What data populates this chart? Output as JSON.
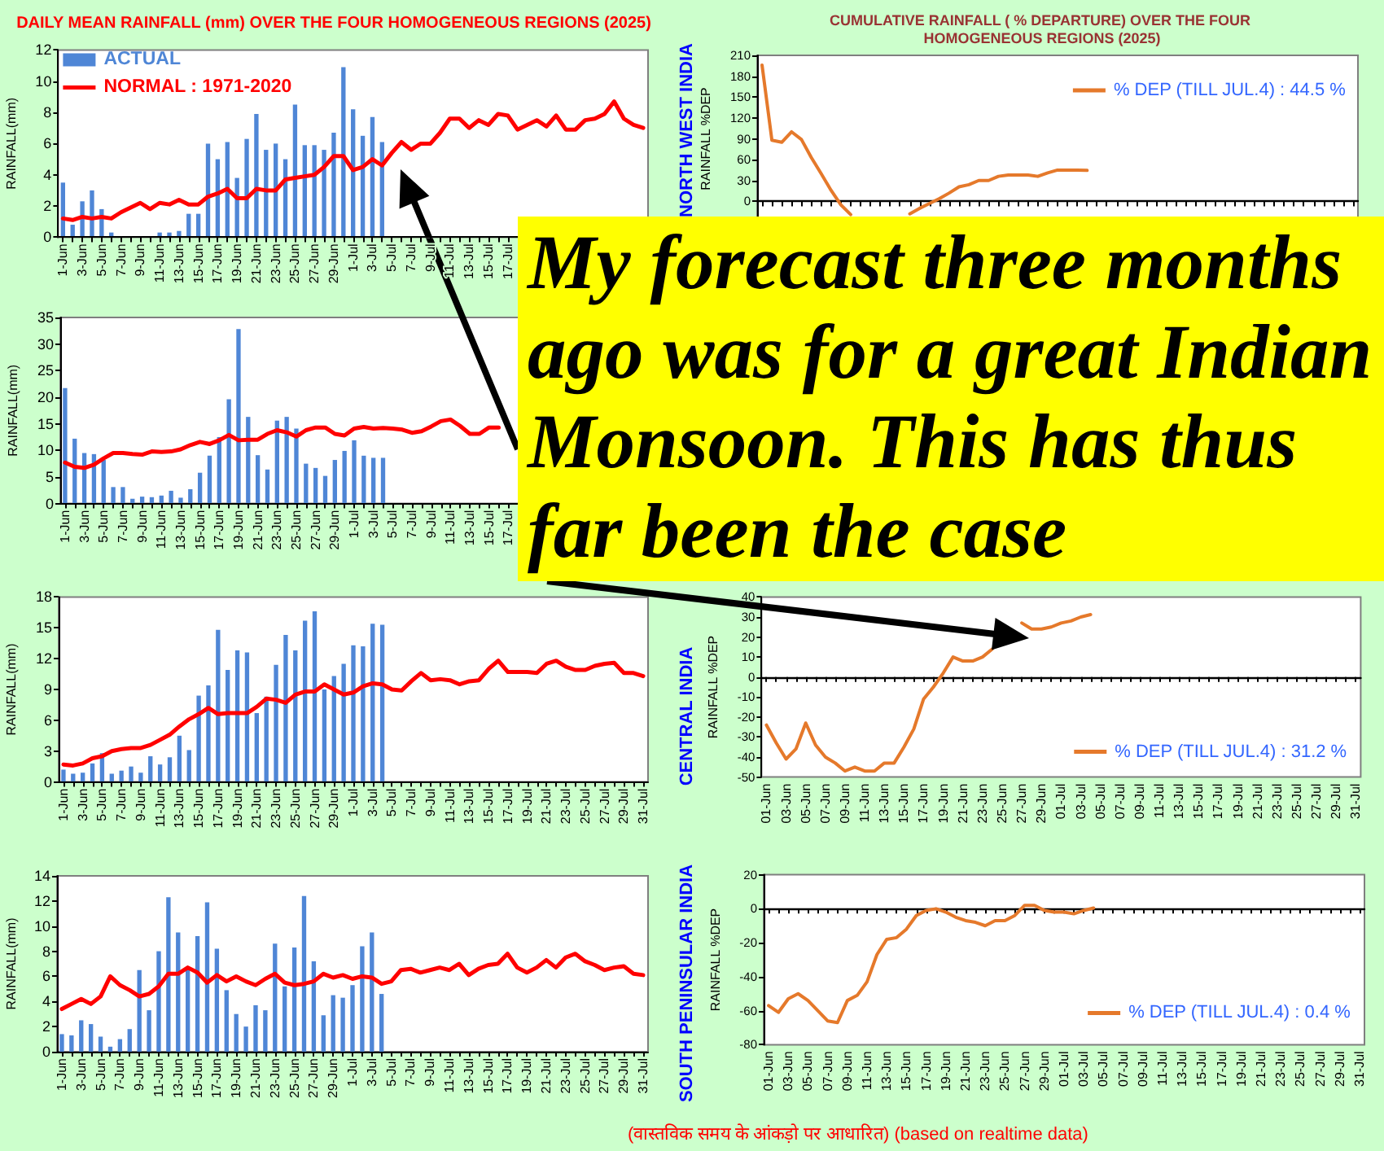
{
  "chart_data": [
    {
      "type": "bar",
      "title": "DAILY MEAN RAINFALL (mm) OVER THE FOUR HOMOGENEOUS REGIONS (2025)",
      "ylabel": "RAINFALL(mm)",
      "categories": [
        "1-Jun",
        null,
        "3-Jun",
        null,
        "5-Jun",
        null,
        "7-Jun",
        null,
        "9-Jun",
        null,
        "11-Jun",
        null,
        "13-Jun",
        null,
        "15-Jun",
        null,
        "17-Jun",
        null,
        "19-Jun",
        null,
        "21-Jun",
        null,
        "23-Jun",
        null,
        "25-Jun",
        null,
        "27-Jun",
        null,
        "29-Jun",
        null,
        "1-Jul",
        null,
        "3-Jul",
        null,
        "5-Jul",
        null,
        "7-Jul",
        null,
        "9-Jul",
        null,
        "11-Jul",
        null,
        "13-Jul",
        null,
        "15-Jul",
        null,
        "17-Jul",
        null,
        null,
        null,
        null,
        null,
        null,
        null,
        null,
        null,
        null,
        null,
        null,
        null,
        null
      ],
      "series": [
        {
          "name": "ACTUAL",
          "type": "bar",
          "color": "#4f86d6",
          "values": [
            3.5,
            0.8,
            2.3,
            3.0,
            1.8,
            0.3,
            0,
            0,
            0,
            0,
            0.3,
            0.3,
            0.4,
            1.5,
            1.5,
            6.0,
            5.0,
            6.1,
            3.8,
            6.3,
            7.9,
            5.6,
            6.0,
            5.0,
            8.5,
            5.9,
            5.9,
            5.6,
            6.7,
            10.9,
            8.2,
            6.5,
            7.7,
            6.1,
            null,
            null,
            null,
            null,
            null,
            null,
            null,
            null,
            null,
            null,
            null,
            null,
            null,
            null,
            null,
            null,
            null,
            null,
            null,
            null,
            null,
            null,
            null,
            null,
            null,
            null,
            null
          ]
        },
        {
          "name": "NORMAL : 1971-2020",
          "type": "line",
          "color": "#ff0000",
          "values": [
            1.2,
            1.1,
            1.3,
            1.2,
            1.3,
            1.2,
            1.6,
            1.9,
            2.2,
            1.8,
            2.2,
            2.1,
            2.4,
            2.1,
            2.1,
            2.6,
            2.8,
            3.1,
            2.5,
            2.5,
            3.1,
            3.0,
            3.0,
            3.7,
            3.8,
            3.9,
            4.0,
            4.5,
            5.2,
            5.2,
            4.3,
            4.5,
            5.0,
            4.6,
            5.4,
            6.1,
            5.6,
            6.0,
            6.0,
            6.7,
            7.6,
            7.6,
            7.0,
            7.5,
            7.2,
            7.9,
            7.8,
            6.9,
            7.2,
            7.5,
            7.1,
            7.8,
            6.9,
            6.9,
            7.5,
            7.6,
            7.9,
            8.7,
            7.6,
            7.2,
            7.0
          ]
        }
      ],
      "ylim": [
        0,
        12
      ],
      "yticks": [
        0,
        2,
        4,
        6,
        8,
        10,
        12
      ],
      "legend": "top left"
    },
    {
      "type": "line",
      "title": "CUMULATIVE RAINFALL ( % DEPARTURE) OVER THE FOUR HOMOGENEOUS REGIONS (2025)",
      "subtitle": "NORTH WEST INDIA",
      "ylabel": "RAINFALL %DEP",
      "categories": [
        null,
        null,
        null,
        null,
        null,
        null,
        null,
        null,
        null,
        null,
        null,
        null,
        null,
        null,
        null,
        null,
        null,
        null,
        null,
        null,
        null,
        null,
        null,
        null,
        null,
        null,
        null,
        null,
        null,
        null,
        null,
        null,
        null,
        null,
        null,
        null,
        null,
        null,
        null,
        null,
        null,
        null,
        null,
        null,
        null,
        null,
        null,
        null,
        null,
        null,
        null,
        null,
        null,
        null,
        null,
        null,
        null,
        null,
        null,
        null,
        null
      ],
      "series": [
        {
          "name": "% DEP (TILL JUL.4) : 44.5 %",
          "color": "#e5792b",
          "values": [
            196,
            88,
            85,
            100,
            89,
            63,
            40,
            16,
            -5,
            -19,
            null,
            null,
            null,
            null,
            null,
            -18,
            -10,
            -3,
            4,
            12,
            21,
            24,
            30,
            30,
            36,
            38,
            38,
            38,
            36,
            41,
            45,
            45,
            45,
            44.5,
            null,
            null,
            null,
            null,
            null,
            null,
            null,
            null,
            null,
            null,
            null,
            null,
            null,
            null,
            null,
            null,
            null,
            null,
            null,
            null,
            null,
            null,
            null,
            null,
            null,
            null,
            null
          ]
        }
      ],
      "ylim": [
        -30,
        210
      ],
      "yticks": [
        0,
        30,
        60,
        90,
        120,
        150,
        180,
        210
      ],
      "tick_labels": "y",
      "legend": "top right"
    },
    {
      "type": "bar",
      "ylabel": "RAINFALL(mm)",
      "categories": [
        "1-Jun",
        null,
        "3-Jun",
        null,
        "5-Jun",
        null,
        "7-Jun",
        null,
        "9-Jun",
        null,
        "11-Jun",
        null,
        "13-Jun",
        null,
        "15-Jun",
        null,
        "17-Jun",
        null,
        "19-Jun",
        null,
        "21-Jun",
        null,
        "23-Jun",
        null,
        "25-Jun",
        null,
        "27-Jun",
        null,
        "29-Jun",
        null,
        "1-Jul",
        null,
        "3-Jul",
        null,
        "5-Jul",
        null,
        "7-Jul",
        null,
        "9-Jul",
        null,
        "11-Jul",
        null,
        "13-Jul",
        null,
        "15-Jul",
        null,
        "17-Jul",
        null,
        null,
        null,
        null,
        null,
        null,
        null,
        null,
        null,
        null,
        null,
        null,
        null,
        null
      ],
      "series": [
        {
          "type": "bar",
          "color": "#4f86d6",
          "values": [
            21.7,
            12.2,
            9.5,
            9.3,
            8.2,
            3.1,
            3.1,
            0.9,
            1.3,
            1.2,
            1.5,
            2.4,
            1.1,
            2.7,
            5.8,
            9.0,
            12.5,
            19.6,
            32.8,
            16.3,
            9.1,
            6.4,
            15.6,
            16.3,
            14.1,
            7.5,
            6.7,
            5.2,
            8.2,
            9.9,
            11.9,
            9.0,
            8.6,
            8.6,
            null,
            null,
            null,
            null,
            null,
            null,
            null,
            null,
            null,
            null,
            null,
            null,
            null,
            null,
            null,
            null,
            null,
            null,
            null,
            null,
            null,
            null,
            null,
            null,
            null,
            null,
            null
          ]
        },
        {
          "type": "line",
          "color": "#ff0000",
          "values": [
            7.7,
            6.9,
            6.7,
            7.3,
            8.5,
            9.5,
            9.5,
            9.3,
            9.2,
            9.8,
            9.7,
            9.8,
            10.2,
            11.0,
            11.6,
            11.2,
            11.9,
            12.9,
            11.9,
            12.0,
            12.0,
            13.1,
            13.8,
            13.4,
            12.6,
            13.8,
            14.3,
            14.3,
            13.1,
            12.8,
            14.1,
            14.4,
            14.1,
            14.2,
            14.1,
            13.9,
            13.3,
            13.6,
            14.5,
            15.5,
            15.8,
            14.6,
            13.1,
            13.1,
            14.3,
            14.3,
            null,
            null,
            null,
            null,
            null,
            null,
            null,
            null,
            null,
            null,
            null,
            null,
            null,
            null,
            null
          ]
        }
      ],
      "ylim": [
        0,
        35
      ],
      "yticks": [
        0,
        5,
        10,
        15,
        20,
        25,
        30,
        35
      ]
    },
    {
      "type": "other",
      "annotations": [
        "My forecast three months ago was for a great Indian Monsoon. This has thus far been the case"
      ]
    },
    {
      "type": "bar",
      "ylabel": "RAINFALL(mm)",
      "categories": [
        "1-Jun",
        null,
        "3-Jun",
        null,
        "5-Jun",
        null,
        "7-Jun",
        null,
        "9-Jun",
        null,
        "11-Jun",
        null,
        "13-Jun",
        null,
        "15-Jun",
        null,
        "17-Jun",
        null,
        "19-Jun",
        null,
        "21-Jun",
        null,
        "23-Jun",
        null,
        "25-Jun",
        null,
        "27-Jun",
        null,
        "29-Jun",
        null,
        "1-Jul",
        null,
        "3-Jul",
        null,
        "5-Jul",
        null,
        "7-Jul",
        null,
        "9-Jul",
        null,
        "11-Jul",
        null,
        "13-Jul",
        null,
        "15-Jul",
        null,
        "17-Jul",
        null,
        "19-Jul",
        null,
        "21-Jul",
        null,
        "23-Jul",
        null,
        "25-Jul",
        null,
        "27-Jul",
        null,
        "29-Jul",
        null,
        "31-Jul"
      ],
      "series": [
        {
          "type": "bar",
          "color": "#4f86d6",
          "values": [
            1.2,
            0.8,
            0.9,
            1.8,
            2.8,
            0.8,
            1.1,
            1.5,
            0.9,
            2.5,
            1.7,
            2.4,
            4.5,
            3.1,
            8.4,
            9.4,
            14.8,
            10.9,
            12.8,
            12.6,
            6.7,
            8.3,
            11.4,
            14.3,
            12.8,
            15.7,
            16.6,
            9.0,
            10.3,
            11.5,
            13.3,
            13.2,
            15.4,
            15.3,
            null,
            null,
            null,
            null,
            null,
            null,
            null,
            null,
            null,
            null,
            null,
            null,
            null,
            null,
            null,
            null,
            null,
            null,
            null,
            null,
            null,
            null,
            null,
            null,
            null,
            null,
            null
          ]
        },
        {
          "type": "line",
          "color": "#ff0000",
          "values": [
            1.7,
            1.6,
            1.8,
            2.3,
            2.5,
            3.0,
            3.2,
            3.3,
            3.3,
            3.6,
            4.1,
            4.6,
            5.4,
            6.1,
            6.6,
            7.2,
            6.6,
            6.7,
            6.7,
            6.7,
            7.3,
            8.1,
            8.0,
            7.7,
            8.5,
            8.8,
            8.8,
            9.5,
            9.0,
            8.5,
            8.7,
            9.3,
            9.6,
            9.5,
            9.0,
            8.9,
            9.8,
            10.6,
            9.9,
            10.0,
            9.9,
            9.5,
            9.8,
            9.9,
            11.0,
            11.8,
            10.7,
            10.7,
            10.7,
            10.6,
            11.5,
            11.8,
            11.2,
            10.9,
            10.9,
            11.3,
            11.5,
            11.6,
            10.6,
            10.6,
            10.3
          ]
        }
      ],
      "ylim": [
        0,
        18
      ],
      "yticks": [
        0,
        3,
        6,
        9,
        12,
        15,
        18
      ]
    },
    {
      "type": "line",
      "subtitle": "CENTRAL INDIA",
      "ylabel": "RAINFALL %DEP",
      "categories": [
        "01-Jun",
        null,
        "03-Jun",
        null,
        "05-Jun",
        null,
        "07-Jun",
        null,
        "09-Jun",
        null,
        "11-Jun",
        null,
        "13-Jun",
        null,
        "15-Jun",
        null,
        "17-Jun",
        null,
        "19-Jun",
        null,
        "21-Jun",
        null,
        "23-Jun",
        null,
        "25-Jun",
        null,
        "27-Jun",
        null,
        "29-Jun",
        null,
        "01-Jul",
        null,
        "03-Jul",
        null,
        "05-Jul",
        null,
        "07-Jul",
        null,
        "09-Jul",
        null,
        "11-Jul",
        null,
        "13-Jul",
        null,
        "15-Jul",
        null,
        "17-Jul",
        null,
        "19-Jul",
        null,
        "21-Jul",
        null,
        "23-Jul",
        null,
        "25-Jul",
        null,
        "27-Jul",
        null,
        "29-Jul",
        null,
        "31-Jul"
      ],
      "series": [
        {
          "name": "% DEP (TILL JUL.4) : 31.2 %",
          "color": "#e5792b",
          "values": [
            -24,
            -33,
            -41,
            -36,
            -23,
            -34,
            -40,
            -43,
            -47,
            -45,
            -47,
            -47,
            -43,
            -43,
            -35,
            -26,
            -11,
            -5,
            2,
            10,
            8,
            8,
            10,
            14,
            null,
            null,
            27,
            24,
            24,
            25,
            27,
            28,
            30,
            31.2,
            null,
            null,
            null,
            null,
            null,
            null,
            null,
            null,
            null,
            null,
            null,
            null,
            null,
            null,
            null,
            null,
            null,
            null,
            null,
            null,
            null,
            null,
            null,
            null,
            null,
            null,
            null
          ]
        }
      ],
      "ylim": [
        -50,
        40
      ],
      "yticks": [
        -50,
        -40,
        -30,
        -20,
        -10,
        0,
        10,
        20,
        30,
        40
      ],
      "legend": "bottom right"
    },
    {
      "type": "bar",
      "ylabel": "RAINFALL(mm)",
      "categories": [
        "1-Jun",
        null,
        "3-Jun",
        null,
        "5-Jun",
        null,
        "7-Jun",
        null,
        "9-Jun",
        null,
        "11-Jun",
        null,
        "13-Jun",
        null,
        "15-Jun",
        null,
        "17-Jun",
        null,
        "19-Jun",
        null,
        "21-Jun",
        null,
        "23-Jun",
        null,
        "25-Jun",
        null,
        "27-Jun",
        null,
        "29-Jun",
        null,
        "1-Jul",
        null,
        "3-Jul",
        null,
        "5-Jul",
        null,
        "7-Jul",
        null,
        "9-Jul",
        null,
        "11-Jul",
        null,
        "13-Jul",
        null,
        "15-Jul",
        null,
        "17-Jul",
        null,
        "19-Jul",
        null,
        "21-Jul",
        null,
        "23-Jul",
        null,
        "25-Jul",
        null,
        "27-Jul",
        null,
        "29-Jul",
        null,
        "31-Jul"
      ],
      "series": [
        {
          "type": "bar",
          "color": "#4f86d6",
          "values": [
            1.4,
            1.3,
            2.5,
            2.2,
            1.2,
            0.4,
            1.0,
            1.8,
            6.5,
            3.3,
            8.0,
            12.3,
            9.5,
            6.6,
            9.2,
            11.9,
            8.2,
            4.9,
            3.0,
            2.0,
            3.7,
            3.3,
            8.6,
            5.2,
            8.3,
            12.4,
            7.2,
            2.9,
            4.5,
            4.3,
            5.3,
            8.4,
            9.5,
            4.6,
            null,
            null,
            null,
            null,
            null,
            null,
            null,
            null,
            null,
            null,
            null,
            null,
            null,
            null,
            null,
            null,
            null,
            null,
            null,
            null,
            null,
            null,
            null,
            null,
            null,
            null,
            null
          ]
        },
        {
          "type": "line",
          "color": "#ff0000",
          "values": [
            3.4,
            3.8,
            4.2,
            3.8,
            4.4,
            6.0,
            5.3,
            4.9,
            4.4,
            4.6,
            5.2,
            6.2,
            6.2,
            6.7,
            6.3,
            5.5,
            6.1,
            5.6,
            6.0,
            5.6,
            5.3,
            5.8,
            6.2,
            5.5,
            5.3,
            5.4,
            5.6,
            6.2,
            5.9,
            6.1,
            5.8,
            6.0,
            5.9,
            5.4,
            5.6,
            6.5,
            6.6,
            6.3,
            6.5,
            6.7,
            6.5,
            7.0,
            6.1,
            6.6,
            6.9,
            7.0,
            7.8,
            6.7,
            6.3,
            6.7,
            7.3,
            6.7,
            7.5,
            7.8,
            7.2,
            6.9,
            6.5,
            6.7,
            6.8,
            6.2,
            6.1
          ]
        }
      ],
      "ylim": [
        0,
        14
      ],
      "yticks": [
        0,
        2,
        4,
        6,
        8,
        10,
        12,
        14
      ],
      "annotations": [
        "(वास्तविक समय के आंकड़ो पर आधारित) (based on realtime data)"
      ]
    },
    {
      "type": "line",
      "subtitle": "SOUTH PENINSULAR INDIA",
      "ylabel": "RAINFALL %DEP",
      "categories": [
        "01-Jun",
        null,
        "03-Jun",
        null,
        "05-Jun",
        null,
        "07-Jun",
        null,
        "09-Jun",
        null,
        "11-Jun",
        null,
        "13-Jun",
        null,
        "15-Jun",
        null,
        "17-Jun",
        null,
        "19-Jun",
        null,
        "21-Jun",
        null,
        "23-Jun",
        null,
        "25-Jun",
        null,
        "27-Jun",
        null,
        "29-Jun",
        null,
        "01-Jul",
        null,
        "03-Jul",
        null,
        "05-Jul",
        null,
        "07-Jul",
        null,
        "09-Jul",
        null,
        "11-Jul",
        null,
        "13-Jul",
        null,
        "15-Jul",
        null,
        "17-Jul",
        null,
        "19-Jul",
        null,
        "21-Jul",
        null,
        "23-Jul",
        null,
        "25-Jul",
        null,
        "27-Jul",
        null,
        "29-Jul",
        null,
        "31-Jul"
      ],
      "series": [
        {
          "name": "% DEP (TILL JUL.4) : 0.4 %",
          "color": "#e5792b",
          "values": [
            -57,
            -61,
            -53,
            -50,
            -54,
            -60,
            -66,
            -67,
            -54,
            -51,
            -43,
            -27,
            -18,
            -17,
            -12,
            -4,
            -1,
            0,
            -2,
            -5,
            -7,
            -8,
            -10,
            -7,
            -7,
            -4,
            2,
            2,
            -1,
            -2,
            -2,
            -3,
            -1,
            0.4,
            null,
            null,
            null,
            null,
            null,
            null,
            null,
            null,
            null,
            null,
            null,
            null,
            null,
            null,
            null,
            null,
            null,
            null,
            null,
            null,
            null,
            null,
            null,
            null,
            null,
            null,
            null
          ]
        }
      ],
      "ylim": [
        -80,
        20
      ],
      "yticks": [
        -80,
        -60,
        -40,
        -20,
        0,
        20
      ],
      "legend": "bottom right"
    }
  ]
}
